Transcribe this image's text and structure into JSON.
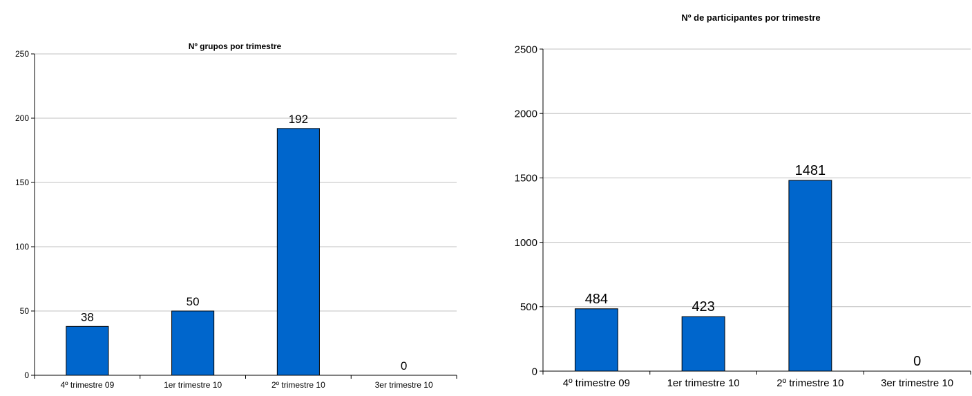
{
  "colors": {
    "bar": "#0066cc",
    "bar_stroke": "#000000",
    "grid": "#c0c0c0",
    "axis": "#000000"
  },
  "chart_data": [
    {
      "type": "bar",
      "title": "Nº grupos por trimestre",
      "categories": [
        "4º trimestre 09",
        "1er trimestre 10",
        "2º trimestre 10",
        "3er trimestre 10"
      ],
      "values": [
        38,
        50,
        192,
        0
      ],
      "ylim": [
        0,
        250
      ],
      "yticks": [
        0,
        50,
        100,
        150,
        200,
        250
      ],
      "grid": true,
      "legend": "none"
    },
    {
      "type": "bar",
      "title": "Nº de participantes por trimestre",
      "categories": [
        "4º trimestre 09",
        "1er trimestre 10",
        "2º trimestre 10",
        "3er trimestre 10"
      ],
      "values": [
        484,
        423,
        1481,
        0
      ],
      "ylim": [
        0,
        2500
      ],
      "yticks": [
        0,
        500,
        1000,
        1500,
        2000,
        2500
      ],
      "grid": true,
      "legend": "none"
    }
  ]
}
